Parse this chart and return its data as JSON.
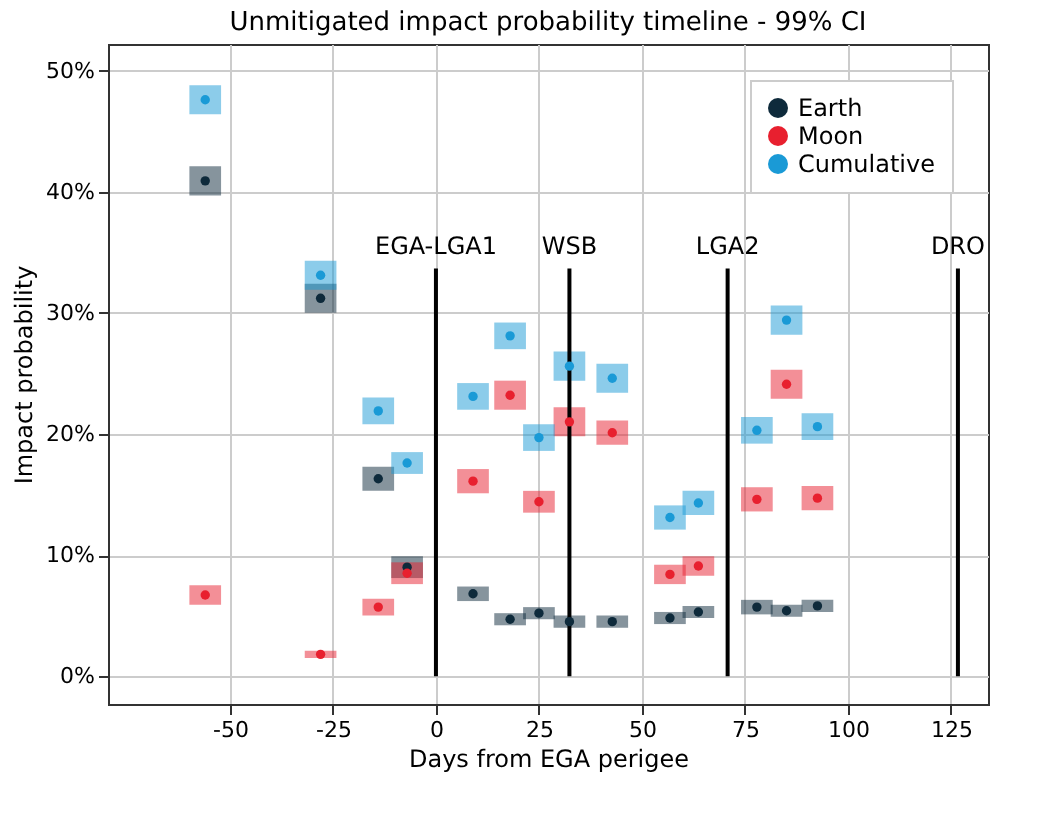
{
  "chart_data": {
    "type": "scatter",
    "title": "Unmitigated impact probability timeline - 99% CI",
    "xlabel": "Days from EGA perigee",
    "ylabel": "Impact probability",
    "x": [
      -56,
      -28,
      -14,
      -7,
      9,
      18,
      25,
      32.4,
      42.8,
      56.8,
      63.7,
      77.9,
      85.1,
      92.6
    ],
    "series": [
      {
        "name": "Earth",
        "color": "#0e2a3b",
        "values": [
          40.9,
          31.2,
          16.3,
          9.0,
          6.8,
          4.7,
          5.2,
          4.5,
          4.5,
          4.8,
          5.3,
          5.7,
          5.4,
          5.8
        ],
        "errors": [
          1.2,
          1.2,
          1.0,
          0.9,
          0.6,
          0.5,
          0.5,
          0.5,
          0.5,
          0.5,
          0.5,
          0.6,
          0.5,
          0.5
        ]
      },
      {
        "name": "Moon",
        "color": "#e8202f",
        "values": [
          6.7,
          1.8,
          5.7,
          8.5,
          16.1,
          23.2,
          14.4,
          21.0,
          20.1,
          8.4,
          9.1,
          14.6,
          24.1,
          14.7
        ],
        "errors": [
          0.8,
          0.3,
          0.7,
          0.9,
          1.0,
          1.2,
          0.9,
          1.2,
          1.0,
          0.8,
          0.8,
          1.0,
          1.2,
          1.0
        ]
      },
      {
        "name": "Cumulative",
        "color": "#1a9ad6",
        "values": [
          47.6,
          33.1,
          21.9,
          17.6,
          23.1,
          28.1,
          19.7,
          25.6,
          24.6,
          13.1,
          14.3,
          20.3,
          29.4,
          20.6
        ],
        "errors": [
          1.2,
          1.2,
          1.1,
          0.9,
          1.1,
          1.1,
          1.1,
          1.2,
          1.2,
          1.0,
          1.0,
          1.1,
          1.2,
          1.1
        ]
      }
    ],
    "ref_lines": [
      {
        "axis": "x",
        "value": 0,
        "label": "EGA-LGA1",
        "color": "#000000"
      },
      {
        "axis": "x",
        "value": 32.4,
        "label": "WSB",
        "color": "#000000"
      },
      {
        "axis": "x",
        "value": 70.8,
        "label": "LGA2",
        "color": "#000000"
      },
      {
        "axis": "x",
        "value": 126.7,
        "label": "DRO",
        "color": "#000000"
      }
    ],
    "xlim": [
      -79.6,
      134
    ],
    "xticks": [
      -50,
      -25,
      0,
      25,
      50,
      75,
      100,
      125
    ],
    "ylim": [
      -2.3,
      52.2
    ],
    "yticks": [
      {
        "value": 0,
        "label": "0%"
      },
      {
        "value": 10,
        "label": "10%"
      },
      {
        "value": 20,
        "label": "20%"
      },
      {
        "value": 30,
        "label": "30%"
      },
      {
        "value": 40,
        "label": "40%"
      },
      {
        "value": 50,
        "label": "50%"
      }
    ],
    "grid": true,
    "legend": "top right",
    "marker": "circle"
  }
}
